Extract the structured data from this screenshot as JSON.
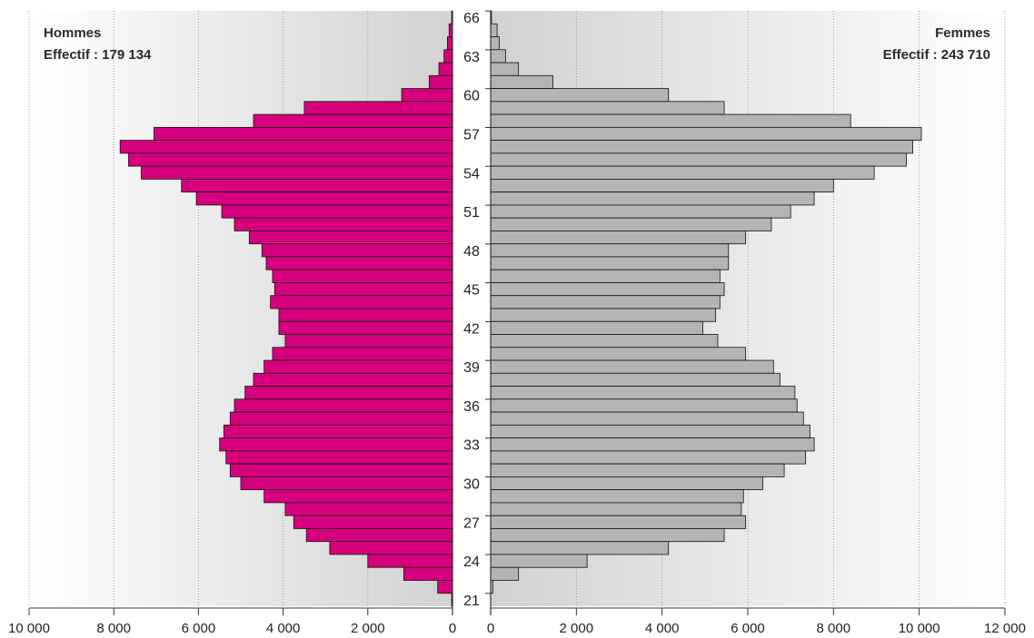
{
  "chart_data": {
    "type": "bar",
    "subtype": "population-pyramid",
    "left_panel": {
      "title": "Hommes",
      "subtitle": "Effectif : 179 134",
      "color": "#d6007e",
      "xlim": [
        0,
        10000
      ],
      "ticks": [
        {
          "v": 10000,
          "label": "10 000"
        },
        {
          "v": 8000,
          "label": "8 000"
        },
        {
          "v": 6000,
          "label": "6 000"
        },
        {
          "v": 4000,
          "label": "4 000"
        },
        {
          "v": 2000,
          "label": "2 000"
        },
        {
          "v": 0,
          "label": "0"
        }
      ]
    },
    "right_panel": {
      "title": "Femmes",
      "subtitle": "Effectif : 243 710",
      "color": "#b4b4b4",
      "xlim": [
        0,
        12000
      ],
      "ticks": [
        {
          "v": 0,
          "label": "0"
        },
        {
          "v": 2000,
          "label": "2 000"
        },
        {
          "v": 4000,
          "label": "4 000"
        },
        {
          "v": 6000,
          "label": "6 000"
        },
        {
          "v": 8000,
          "label": "8 000"
        },
        {
          "v": 10000,
          "label": "10 000"
        },
        {
          "v": 12000,
          "label": "12 000"
        }
      ]
    },
    "age_labels": [
      {
        "age": 66,
        "label": "66"
      },
      {
        "age": 63,
        "label": "63"
      },
      {
        "age": 60,
        "label": "60"
      },
      {
        "age": 57,
        "label": "57"
      },
      {
        "age": 54,
        "label": "54"
      },
      {
        "age": 51,
        "label": "51"
      },
      {
        "age": 48,
        "label": "48"
      },
      {
        "age": 45,
        "label": "45"
      },
      {
        "age": 42,
        "label": "42"
      },
      {
        "age": 39,
        "label": "39"
      },
      {
        "age": 36,
        "label": "36"
      },
      {
        "age": 33,
        "label": "33"
      },
      {
        "age": 30,
        "label": "30"
      },
      {
        "age": 27,
        "label": "27"
      },
      {
        "age": 24,
        "label": "24"
      },
      {
        "age": 21,
        "label": "21"
      }
    ],
    "ages": [
      66,
      65,
      64,
      63,
      62,
      61,
      60,
      59,
      58,
      57,
      56,
      55,
      54,
      53,
      52,
      51,
      50,
      49,
      48,
      47,
      46,
      45,
      44,
      43,
      42,
      41,
      40,
      39,
      38,
      37,
      36,
      35,
      34,
      33,
      32,
      31,
      30,
      29,
      28,
      27,
      26,
      25,
      24,
      23,
      22,
      21
    ],
    "hommes": [
      20,
      80,
      120,
      200,
      320,
      550,
      1200,
      3500,
      4700,
      7050,
      7850,
      7650,
      7350,
      6400,
      6050,
      5450,
      5150,
      4800,
      4500,
      4400,
      4250,
      4200,
      4300,
      4100,
      4100,
      3950,
      4250,
      4450,
      4700,
      4900,
      5150,
      5250,
      5400,
      5500,
      5350,
      5250,
      5000,
      4450,
      3950,
      3750,
      3450,
      2900,
      2000,
      1150,
      350,
      20
    ],
    "femmes": [
      20,
      150,
      200,
      350,
      650,
      1450,
      4150,
      5450,
      8400,
      10050,
      9850,
      9700,
      8950,
      8000,
      7550,
      7000,
      6550,
      5950,
      5550,
      5550,
      5350,
      5450,
      5350,
      5250,
      4950,
      5300,
      5950,
      6600,
      6750,
      7100,
      7150,
      7300,
      7450,
      7550,
      7350,
      6850,
      6350,
      5900,
      5850,
      5950,
      5450,
      4150,
      2250,
      650,
      50,
      0
    ]
  }
}
